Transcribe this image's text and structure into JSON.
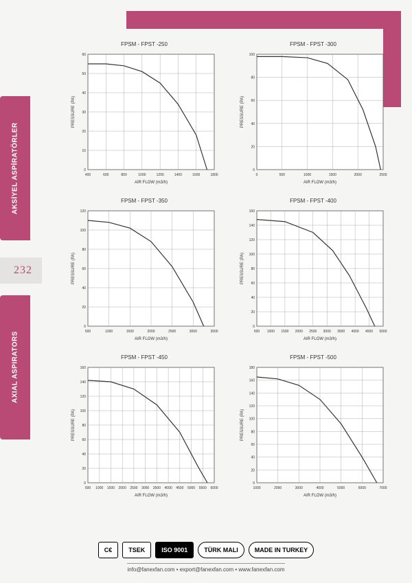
{
  "page_number": "232",
  "sidebar": {
    "label_tr": "AKSİYEL ASPİRATÖRLER",
    "label_en": "AXIAL ASPIRATORS"
  },
  "accent_color": "#b84a75",
  "charts": [
    {
      "title": "FPSM - FPST -250",
      "xlabel": "AIR FLOW (m3/h)",
      "ylabel": "PRESSURE (PA)",
      "xlim": [
        400,
        1800
      ],
      "xtick_step": 200,
      "ylim": [
        0,
        60
      ],
      "ytick_step": 10,
      "curve": [
        [
          400,
          55
        ],
        [
          600,
          55
        ],
        [
          800,
          54
        ],
        [
          1000,
          51
        ],
        [
          1200,
          45
        ],
        [
          1400,
          34
        ],
        [
          1600,
          18
        ],
        [
          1720,
          0
        ]
      ]
    },
    {
      "title": "FPSM - FPST -300",
      "xlabel": "AIR FLOW (m3/h)",
      "ylabel": "PRESSURE (PA)",
      "xlim": [
        0,
        2500
      ],
      "xtick_step": 500,
      "ylim": [
        0,
        100
      ],
      "ytick_step": 20,
      "curve": [
        [
          0,
          98
        ],
        [
          500,
          98
        ],
        [
          1000,
          97
        ],
        [
          1400,
          92
        ],
        [
          1800,
          78
        ],
        [
          2100,
          52
        ],
        [
          2350,
          20
        ],
        [
          2450,
          0
        ]
      ]
    },
    {
      "title": "FPSM - FPST -350",
      "xlabel": "AIR FLOW (m3/h)",
      "ylabel": "PRESSURE (PA)",
      "xlim": [
        500,
        3500
      ],
      "xtick_step": 500,
      "ylim": [
        0,
        120
      ],
      "ytick_step": 20,
      "curve": [
        [
          500,
          110
        ],
        [
          1000,
          108
        ],
        [
          1500,
          102
        ],
        [
          2000,
          88
        ],
        [
          2500,
          62
        ],
        [
          3000,
          25
        ],
        [
          3250,
          0
        ]
      ]
    },
    {
      "title": "FPSM - FPST -400",
      "xlabel": "AIR FLOW (m3/h)",
      "ylabel": "PRESSURE (PA)",
      "xlim": [
        500,
        5000
      ],
      "xtick_step": 500,
      "ylim": [
        0,
        160
      ],
      "ytick_step": 20,
      "curve": [
        [
          500,
          148
        ],
        [
          1500,
          145
        ],
        [
          2500,
          130
        ],
        [
          3200,
          105
        ],
        [
          3800,
          70
        ],
        [
          4400,
          25
        ],
        [
          4700,
          0
        ]
      ]
    },
    {
      "title": "FPSM - FPST -450",
      "xlabel": "AIR FLOW (m3/h)",
      "ylabel": "PRESSURE (PA)",
      "xlim": [
        500,
        6000
      ],
      "xtick_step": 500,
      "ylim": [
        0,
        160
      ],
      "ytick_step": 20,
      "curve": [
        [
          500,
          142
        ],
        [
          1500,
          140
        ],
        [
          2500,
          130
        ],
        [
          3500,
          108
        ],
        [
          4500,
          70
        ],
        [
          5300,
          22
        ],
        [
          5700,
          0
        ]
      ]
    },
    {
      "title": "FPSM - FPST -500",
      "xlabel": "AIR FLOW (m3/h)",
      "ylabel": "PRESSURE (PA)",
      "xlim": [
        1000,
        7000
      ],
      "xtick_step": 1000,
      "ylim": [
        0,
        180
      ],
      "ytick_step": 20,
      "curve": [
        [
          1000,
          165
        ],
        [
          2000,
          162
        ],
        [
          3000,
          152
        ],
        [
          4000,
          130
        ],
        [
          5000,
          92
        ],
        [
          6000,
          40
        ],
        [
          6700,
          0
        ]
      ]
    }
  ],
  "chart_style": {
    "grid_color": "#999999",
    "border_color": "#333333",
    "line_color": "#333333",
    "line_width": 1.2,
    "tick_fontsize": 5,
    "title_fontsize": 8,
    "label_fontsize": 6,
    "background": "#ffffff"
  },
  "badges": [
    {
      "text": "C€",
      "style": "plain"
    },
    {
      "text": "TSEK",
      "style": "box"
    },
    {
      "text": "ISO 9001",
      "style": "dark"
    },
    {
      "text": "TÜRK MALI",
      "style": "oval"
    },
    {
      "text": "MADE IN TURKEY",
      "style": "oval"
    }
  ],
  "contact": "info@fanexfan.com • export@fanexfan.com • www.fanexfan.com"
}
